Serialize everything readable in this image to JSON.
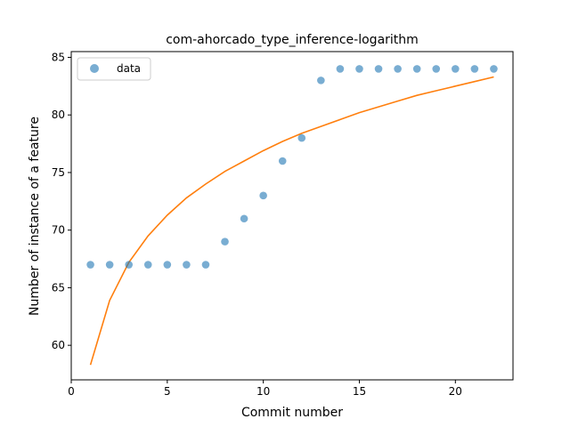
{
  "chart_data": {
    "type": "scatter",
    "title": "com-ahorcado_type_inference-logarithm",
    "xlabel": "Commit number",
    "ylabel": "Number of instance of a feature",
    "xlim": [
      0,
      23
    ],
    "ylim": [
      57,
      85.5
    ],
    "xticks": [
      0,
      5,
      10,
      15,
      20
    ],
    "yticks": [
      60,
      65,
      70,
      75,
      80,
      85
    ],
    "grid": false,
    "legend": {
      "position": "top-left",
      "entries": [
        "data"
      ]
    },
    "colors": {
      "data": "#1f77b4",
      "fit": "#ff7f0e"
    },
    "series": [
      {
        "name": "data",
        "kind": "scatter",
        "x": [
          1,
          2,
          3,
          4,
          5,
          6,
          7,
          8,
          9,
          10,
          11,
          12,
          13,
          14,
          15,
          16,
          17,
          18,
          19,
          20,
          21,
          22
        ],
        "y": [
          67,
          67,
          67,
          67,
          67,
          67,
          67,
          69,
          71,
          73,
          76,
          78,
          83,
          84,
          84,
          84,
          84,
          84,
          84,
          84,
          84,
          84
        ]
      },
      {
        "kind": "line",
        "x": [
          1,
          2,
          3,
          4,
          5,
          6,
          7,
          8,
          9,
          10,
          11,
          12,
          13,
          14,
          15,
          16,
          17,
          18,
          19,
          20,
          21,
          22
        ],
        "y": [
          58.3,
          63.9,
          67.2,
          69.5,
          71.3,
          72.8,
          74.0,
          75.1,
          76.0,
          76.9,
          77.7,
          78.4,
          79.0,
          79.6,
          80.2,
          80.7,
          81.2,
          81.7,
          82.1,
          82.5,
          82.9,
          83.3
        ]
      }
    ]
  }
}
